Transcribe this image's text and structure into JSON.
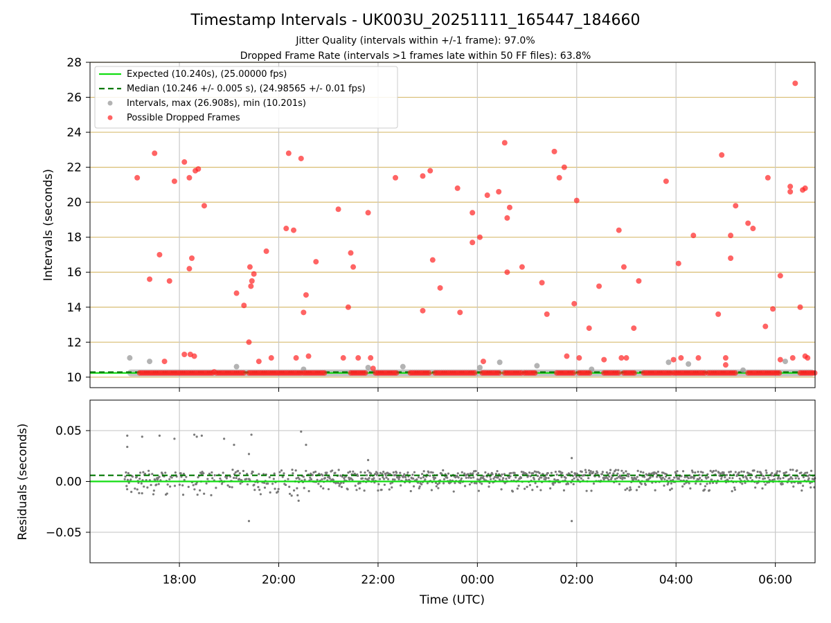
{
  "title": "Timestamp Intervals - UK003U_20251111_165447_184660",
  "subtitle_1": "Jitter Quality (intervals within +/-1 frame): 97.0%",
  "subtitle_2": "Dropped Frame Rate (intervals >1 frames late within 50 FF files): 63.8%",
  "colors": {
    "expected": "#11dd11",
    "median": "#007700",
    "intervals": "#999999",
    "dropped": "#ff2222",
    "hgrid": "#d8bc70",
    "vgrid": "#c8c8c8",
    "residual": "#7a7a7a"
  },
  "chart_data": [
    {
      "type": "scatter",
      "name": "intervals-panel",
      "ylabel": "Intervals (seconds)",
      "xlabel": "",
      "x_units": "hours since 00:00 UTC",
      "xlim": [
        -7.8,
        6.8
      ],
      "ylim": [
        9.4,
        28
      ],
      "yticks": [
        10,
        12,
        14,
        16,
        18,
        20,
        22,
        24,
        26,
        28
      ],
      "xticks": [
        -6,
        -4,
        -2,
        0,
        2,
        4,
        6
      ],
      "grid": "on",
      "legend_position": "top-left",
      "legend": [
        "Expected (10.240s), (25.00000 fps)",
        "Median (10.246 +/- 0.005 s), (24.98565 +/- 0.01 fps)",
        "Intervals, max (26.908s), min (10.201s)",
        "Possible Dropped Frames"
      ],
      "expected_y": 10.24,
      "median_y": 10.246,
      "baseline_x_range": [
        -7.05,
        6.8
      ],
      "dropped_baseline_segments": [
        [
          -6.8,
          -5.3
        ],
        [
          -5.25,
          -4.7
        ],
        [
          -4.6,
          -3.55
        ],
        [
          -3.5,
          -3.05
        ],
        [
          -2.55,
          -2.25
        ],
        [
          -2.05,
          -1.6
        ],
        [
          -1.35,
          -0.95
        ],
        [
          -0.85,
          -0.05
        ],
        [
          0.1,
          0.45
        ],
        [
          0.55,
          0.9
        ],
        [
          0.95,
          1.2
        ],
        [
          1.6,
          1.95
        ],
        [
          2.05,
          2.3
        ],
        [
          2.55,
          2.85
        ],
        [
          2.95,
          3.2
        ],
        [
          3.35,
          3.9
        ],
        [
          3.95,
          4.6
        ],
        [
          4.65,
          5.2
        ],
        [
          5.45,
          6.1
        ],
        [
          6.5,
          6.8
        ]
      ],
      "interval_outliers": [
        {
          "x": -7.0,
          "y": 11.1
        },
        {
          "x": -6.6,
          "y": 10.9
        },
        {
          "x": -4.85,
          "y": 10.6
        },
        {
          "x": -3.5,
          "y": 10.45
        },
        {
          "x": -2.2,
          "y": 10.55
        },
        {
          "x": -1.5,
          "y": 10.6
        },
        {
          "x": 0.05,
          "y": 10.55
        },
        {
          "x": 0.45,
          "y": 10.85
        },
        {
          "x": 1.2,
          "y": 10.65
        },
        {
          "x": 2.3,
          "y": 10.45
        },
        {
          "x": 3.85,
          "y": 10.85
        },
        {
          "x": 4.25,
          "y": 10.75
        },
        {
          "x": 5.35,
          "y": 10.4
        },
        {
          "x": 6.2,
          "y": 10.9
        }
      ],
      "dropped_points": [
        {
          "x": -6.85,
          "y": 21.4
        },
        {
          "x": -6.6,
          "y": 15.6
        },
        {
          "x": -6.5,
          "y": 22.8
        },
        {
          "x": -6.4,
          "y": 17.0
        },
        {
          "x": -6.3,
          "y": 10.9
        },
        {
          "x": -6.2,
          "y": 15.5
        },
        {
          "x": -6.1,
          "y": 21.2
        },
        {
          "x": -5.9,
          "y": 22.3
        },
        {
          "x": -5.9,
          "y": 11.3
        },
        {
          "x": -5.8,
          "y": 21.4
        },
        {
          "x": -5.8,
          "y": 16.2
        },
        {
          "x": -5.78,
          "y": 11.3
        },
        {
          "x": -5.75,
          "y": 16.8
        },
        {
          "x": -5.7,
          "y": 11.2
        },
        {
          "x": -5.68,
          "y": 21.8
        },
        {
          "x": -5.62,
          "y": 21.9
        },
        {
          "x": -5.5,
          "y": 19.8
        },
        {
          "x": -5.3,
          "y": 10.3
        },
        {
          "x": -4.85,
          "y": 14.8
        },
        {
          "x": -4.7,
          "y": 14.1
        },
        {
          "x": -4.6,
          "y": 12.0
        },
        {
          "x": -4.58,
          "y": 16.3
        },
        {
          "x": -4.56,
          "y": 15.2
        },
        {
          "x": -4.54,
          "y": 15.5
        },
        {
          "x": -4.5,
          "y": 15.9
        },
        {
          "x": -4.4,
          "y": 10.9
        },
        {
          "x": -4.25,
          "y": 17.2
        },
        {
          "x": -4.15,
          "y": 11.1
        },
        {
          "x": -3.85,
          "y": 18.5
        },
        {
          "x": -3.8,
          "y": 22.8
        },
        {
          "x": -3.7,
          "y": 18.4
        },
        {
          "x": -3.65,
          "y": 11.1
        },
        {
          "x": -3.55,
          "y": 22.5
        },
        {
          "x": -3.5,
          "y": 13.7
        },
        {
          "x": -3.45,
          "y": 14.7
        },
        {
          "x": -3.4,
          "y": 11.2
        },
        {
          "x": -3.25,
          "y": 16.6
        },
        {
          "x": -2.8,
          "y": 19.6
        },
        {
          "x": -2.7,
          "y": 11.1
        },
        {
          "x": -2.6,
          "y": 14.0
        },
        {
          "x": -2.55,
          "y": 17.1
        },
        {
          "x": -2.5,
          "y": 16.3
        },
        {
          "x": -2.4,
          "y": 11.1
        },
        {
          "x": -2.2,
          "y": 19.4
        },
        {
          "x": -2.15,
          "y": 11.1
        },
        {
          "x": -2.1,
          "y": 10.5
        },
        {
          "x": -1.65,
          "y": 21.4
        },
        {
          "x": -1.1,
          "y": 21.5
        },
        {
          "x": -1.1,
          "y": 13.8
        },
        {
          "x": -0.95,
          "y": 21.8
        },
        {
          "x": -0.9,
          "y": 16.7
        },
        {
          "x": -0.75,
          "y": 15.1
        },
        {
          "x": -0.4,
          "y": 20.8
        },
        {
          "x": -0.35,
          "y": 13.7
        },
        {
          "x": -0.1,
          "y": 19.4
        },
        {
          "x": -0.1,
          "y": 17.7
        },
        {
          "x": 0.05,
          "y": 18.0
        },
        {
          "x": 0.12,
          "y": 10.9
        },
        {
          "x": 0.2,
          "y": 20.4
        },
        {
          "x": 0.43,
          "y": 20.6
        },
        {
          "x": 0.55,
          "y": 23.4
        },
        {
          "x": 0.6,
          "y": 19.1
        },
        {
          "x": 0.65,
          "y": 19.7
        },
        {
          "x": 0.6,
          "y": 16.0
        },
        {
          "x": 0.9,
          "y": 16.3
        },
        {
          "x": 1.3,
          "y": 15.4
        },
        {
          "x": 1.4,
          "y": 13.6
        },
        {
          "x": 1.55,
          "y": 22.9
        },
        {
          "x": 1.65,
          "y": 21.4
        },
        {
          "x": 1.75,
          "y": 22.0
        },
        {
          "x": 1.8,
          "y": 11.2
        },
        {
          "x": 2.0,
          "y": 20.1
        },
        {
          "x": 1.95,
          "y": 14.2
        },
        {
          "x": 2.05,
          "y": 11.1
        },
        {
          "x": 2.25,
          "y": 12.8
        },
        {
          "x": 2.45,
          "y": 15.2
        },
        {
          "x": 2.55,
          "y": 11.0
        },
        {
          "x": 2.85,
          "y": 18.4
        },
        {
          "x": 2.95,
          "y": 16.3
        },
        {
          "x": 2.9,
          "y": 11.1
        },
        {
          "x": 3.0,
          "y": 11.1
        },
        {
          "x": 3.15,
          "y": 12.8
        },
        {
          "x": 3.25,
          "y": 15.5
        },
        {
          "x": 3.8,
          "y": 21.2
        },
        {
          "x": 3.95,
          "y": 11.0
        },
        {
          "x": 4.05,
          "y": 16.5
        },
        {
          "x": 4.1,
          "y": 11.1
        },
        {
          "x": 4.35,
          "y": 18.1
        },
        {
          "x": 4.45,
          "y": 11.1
        },
        {
          "x": 4.85,
          "y": 13.6
        },
        {
          "x": 4.92,
          "y": 22.7
        },
        {
          "x": 5.0,
          "y": 11.1
        },
        {
          "x": 5.0,
          "y": 10.7
        },
        {
          "x": 5.1,
          "y": 18.1
        },
        {
          "x": 5.1,
          "y": 16.8
        },
        {
          "x": 5.2,
          "y": 19.8
        },
        {
          "x": 5.45,
          "y": 18.8
        },
        {
          "x": 5.55,
          "y": 18.5
        },
        {
          "x": 5.8,
          "y": 12.9
        },
        {
          "x": 5.85,
          "y": 21.4
        },
        {
          "x": 5.95,
          "y": 13.9
        },
        {
          "x": 6.1,
          "y": 15.8
        },
        {
          "x": 6.1,
          "y": 11.0
        },
        {
          "x": 6.3,
          "y": 20.9
        },
        {
          "x": 6.3,
          "y": 20.6
        },
        {
          "x": 6.35,
          "y": 11.1
        },
        {
          "x": 6.4,
          "y": 26.8
        },
        {
          "x": 6.5,
          "y": 14.0
        },
        {
          "x": 6.55,
          "y": 20.7
        },
        {
          "x": 6.6,
          "y": 20.8
        },
        {
          "x": 6.6,
          "y": 11.2
        },
        {
          "x": 6.65,
          "y": 11.1
        }
      ]
    },
    {
      "type": "scatter",
      "name": "residuals-panel",
      "ylabel": "Residuals (seconds)",
      "xlabel": "Time (UTC)",
      "x_units": "hours since 00:00 UTC",
      "xlim": [
        -7.8,
        6.8
      ],
      "ylim": [
        -0.08,
        0.08
      ],
      "yticks": [
        -0.05,
        0.0,
        0.05
      ],
      "ytick_labels": [
        "−0.05",
        "0.00",
        "0.05"
      ],
      "xticks": [
        -6,
        -4,
        -2,
        0,
        2,
        4,
        6
      ],
      "xtick_labels": [
        "18:00",
        "20:00",
        "22:00",
        "00:00",
        "02:00",
        "04:00",
        "06:00"
      ],
      "grid": "on",
      "expected_y": 0.0,
      "median_y": 0.006,
      "residual_x_range": [
        -7.1,
        6.8
      ],
      "residual_outliers": [
        {
          "x": -7.05,
          "y": 0.045
        },
        {
          "x": -7.05,
          "y": 0.034
        },
        {
          "x": -6.75,
          "y": 0.044
        },
        {
          "x": -6.4,
          "y": 0.045
        },
        {
          "x": -6.1,
          "y": 0.042
        },
        {
          "x": -5.7,
          "y": 0.046
        },
        {
          "x": -5.65,
          "y": 0.044
        },
        {
          "x": -5.55,
          "y": 0.045
        },
        {
          "x": -5.1,
          "y": 0.042
        },
        {
          "x": -4.9,
          "y": 0.036
        },
        {
          "x": -4.55,
          "y": 0.046
        },
        {
          "x": -4.6,
          "y": 0.027
        },
        {
          "x": -4.6,
          "y": -0.039
        },
        {
          "x": -3.55,
          "y": 0.049
        },
        {
          "x": -3.45,
          "y": 0.036
        },
        {
          "x": -3.6,
          "y": -0.019
        },
        {
          "x": -2.2,
          "y": 0.021
        },
        {
          "x": 1.9,
          "y": 0.023
        },
        {
          "x": 1.9,
          "y": -0.039
        }
      ]
    }
  ]
}
